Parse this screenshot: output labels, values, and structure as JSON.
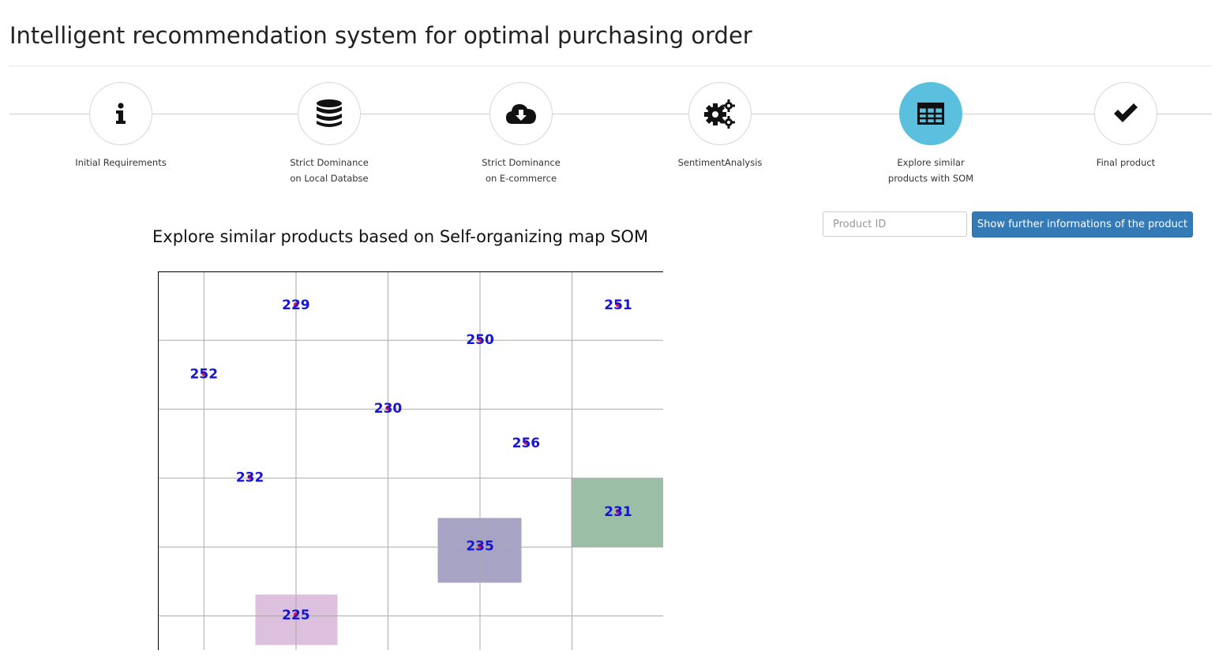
{
  "header": {
    "title": "Intelligent recommendation system for optimal purchasing order"
  },
  "wizard": {
    "steps": [
      {
        "icon": "info-icon",
        "lines": [
          "Initial Requirements",
          ""
        ],
        "active": false
      },
      {
        "icon": "database-icon",
        "lines": [
          "Strict Dominance",
          "on Local Databse"
        ],
        "active": false
      },
      {
        "icon": "cloud-download-icon",
        "lines": [
          "Strict Dominance",
          "on E-commerce"
        ],
        "active": false
      },
      {
        "icon": "gears-icon",
        "lines": [
          "SentimentAnalysis",
          ""
        ],
        "active": false
      },
      {
        "icon": "table-icon",
        "lines": [
          "Explore similar",
          "products with SOM"
        ],
        "active": true
      },
      {
        "icon": "check-icon",
        "lines": [
          "Final product",
          ""
        ],
        "active": false
      }
    ]
  },
  "search": {
    "placeholder": "Product ID",
    "button_label": "Show further informations of the product"
  },
  "som": {
    "title": "Explore similar products based on Self-organizing map SOM",
    "grid": {
      "columns": 5.5,
      "rows": 5.5
    },
    "colors": {
      "label": "#1515d6",
      "marker": "#e0204a",
      "grid": "#aaaaaa",
      "axis": "#000000",
      "highlight_purple": "#a6a3c4",
      "highlight_green": "#9abea6",
      "highlight_pink": "#dcc0de"
    },
    "products": [
      {
        "id": "229",
        "x": 1.5,
        "y": 5.0
      },
      {
        "id": "251",
        "x": 5.0,
        "y": 5.0
      },
      {
        "id": "250",
        "x": 3.5,
        "y": 4.5
      },
      {
        "id": "252",
        "x": 0.5,
        "y": 4.0
      },
      {
        "id": "230",
        "x": 2.5,
        "y": 3.5
      },
      {
        "id": "256",
        "x": 4.0,
        "y": 3.0
      },
      {
        "id": "232",
        "x": 1.0,
        "y": 2.5
      },
      {
        "id": "231",
        "x": 5.0,
        "y": 2.0
      },
      {
        "id": "235",
        "x": 3.5,
        "y": 1.5
      },
      {
        "id": "225",
        "x": 1.5,
        "y": 0.5
      }
    ],
    "highlights": [
      {
        "product": "231",
        "color": "#9abea6"
      },
      {
        "product": "235",
        "color": "#a6a3c4"
      },
      {
        "product": "225",
        "color": "#dcc0de"
      }
    ]
  }
}
